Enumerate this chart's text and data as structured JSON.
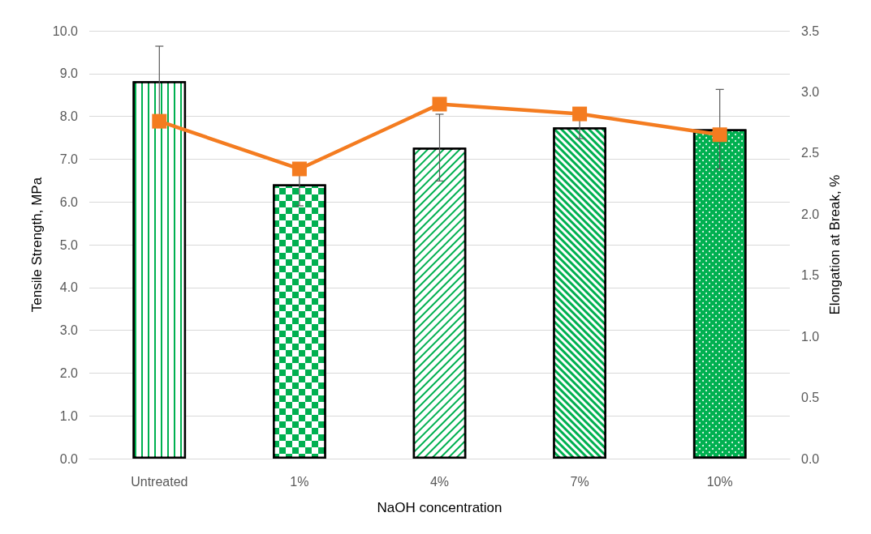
{
  "chart_data": {
    "type": "bar",
    "xlabel": "NaOH concentration",
    "ylabel": "Tensile Strength, MPa",
    "y2label": "Elongation at Break, %",
    "categories": [
      "Untreated",
      "1%",
      "4%",
      "7%",
      "10%"
    ],
    "series": [
      {
        "color": "#00b050",
        "values": [
          8.82,
          6.41,
          7.27,
          7.74,
          7.7
        ],
        "errors": [
          0.82,
          0.5,
          0.78,
          0.26,
          0.93
        ]
      },
      {
        "type": "line",
        "axis": "y2",
        "color": "#f47c20",
        "marker": "square",
        "values": [
          2.76,
          2.37,
          2.9,
          2.82,
          2.65
        ]
      }
    ],
    "ylim": [
      0,
      10
    ],
    "yticks": [
      {
        "value": 0,
        "label": "0.0"
      },
      {
        "value": 1,
        "label": "1.0"
      },
      {
        "value": 2,
        "label": "2.0"
      },
      {
        "value": 3,
        "label": "3.0"
      },
      {
        "value": 4,
        "label": "4.0"
      },
      {
        "value": 5,
        "label": "5.0"
      },
      {
        "value": 6,
        "label": "6.0"
      },
      {
        "value": 7,
        "label": "7.0"
      },
      {
        "value": 8,
        "label": "8.0"
      },
      {
        "value": 9,
        "label": "9.0"
      },
      {
        "value": 10,
        "label": "10.0"
      }
    ],
    "y2lim": [
      0,
      3.5
    ],
    "y2ticks": [
      {
        "value": 0,
        "label": "0.0"
      },
      {
        "value": 0.5,
        "label": "0.5"
      },
      {
        "value": 1,
        "label": "1.0"
      },
      {
        "value": 1.5,
        "label": "1.5"
      },
      {
        "value": 2,
        "label": "2.0"
      },
      {
        "value": 2.5,
        "label": "2.5"
      },
      {
        "value": 3,
        "label": "3.0"
      },
      {
        "value": 3.5,
        "label": "3.5"
      }
    ],
    "grid": "y"
  }
}
